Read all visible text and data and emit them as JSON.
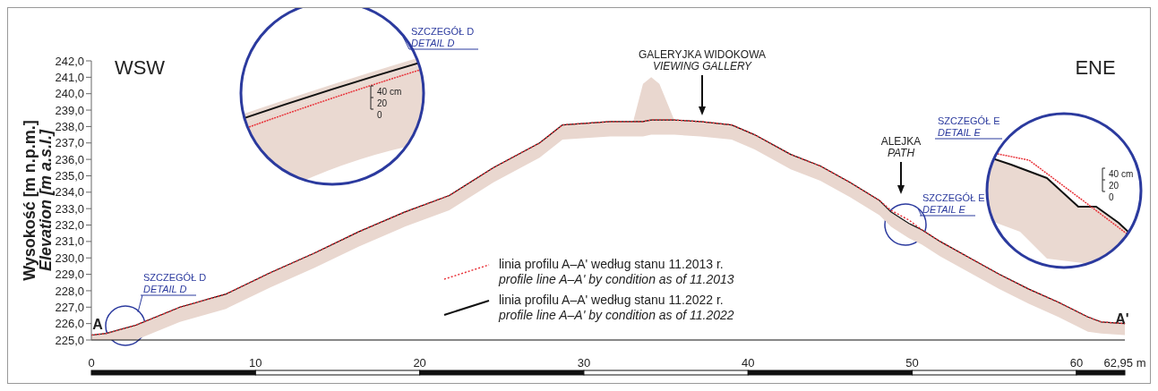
{
  "chart_data": {
    "type": "line",
    "ylabel": "Wysokość [m n.p.m.]\nElevation [m a.s.l.]",
    "x": [
      0,
      0.9,
      2.7,
      5.4,
      8.2,
      10.9,
      13.6,
      16.3,
      19.1,
      21.8,
      24.5,
      27.3,
      28.7,
      31.6,
      33.0,
      33.6,
      34.1,
      34.6,
      35.5,
      37.1,
      39.0,
      40.4,
      42.6,
      44.4,
      46.2,
      48.0,
      48.7,
      49.8,
      50.6,
      51.7,
      53.5,
      55.3,
      57.1,
      58.9,
      60.7,
      61.5,
      62.95
    ],
    "series": [
      {
        "name": "linia profilu A–A' według stanu 11.2013 r.\nprofile line A–A' by condition as of 11.2013",
        "color": "#e8333a",
        "line_style": "dotted",
        "values": [
          225.3,
          225.4,
          225.9,
          227.0,
          227.8,
          229.1,
          230.3,
          231.6,
          232.8,
          233.8,
          235.5,
          237.0,
          238.1,
          238.3,
          238.3,
          238.3,
          238.4,
          238.4,
          238.4,
          238.3,
          238.1,
          237.5,
          236.3,
          235.6,
          234.6,
          233.5,
          232.9,
          232.3,
          231.7,
          231.0,
          230.0,
          229.0,
          228.1,
          227.3,
          226.4,
          226.1,
          226.0
        ]
      },
      {
        "name": "linia profilu A–A' według stanu 11.2022 r.\nprofile line A–A' by condition as of 11.2022",
        "color": "#111111",
        "line_style": "solid",
        "values": [
          225.3,
          225.4,
          225.9,
          227.0,
          227.8,
          229.1,
          230.3,
          231.6,
          232.8,
          233.8,
          235.5,
          237.0,
          238.1,
          238.3,
          238.3,
          238.3,
          238.4,
          238.4,
          238.4,
          238.3,
          238.1,
          237.5,
          236.3,
          235.6,
          234.6,
          233.5,
          232.8,
          232.1,
          231.7,
          231.0,
          230.0,
          229.0,
          228.1,
          227.3,
          226.4,
          226.1,
          226.0
        ],
        "lower": [
          225.0,
          225.0,
          225.0,
          226.1,
          226.9,
          228.2,
          229.4,
          230.7,
          231.9,
          232.9,
          234.6,
          236.1,
          237.2,
          237.4,
          237.4,
          237.4,
          237.5,
          237.5,
          237.5,
          237.4,
          237.2,
          236.6,
          235.4,
          234.7,
          233.7,
          232.6,
          231.9,
          231.2,
          230.8,
          230.1,
          229.1,
          228.1,
          227.2,
          226.4,
          225.5,
          225.4,
          225.3
        ],
        "upper": [
          225.3,
          225.4,
          225.9,
          227.0,
          227.8,
          229.1,
          230.3,
          231.6,
          232.8,
          233.8,
          235.5,
          237.0,
          238.1,
          238.3,
          238.3,
          240.6,
          241.0,
          240.6,
          238.4,
          238.3,
          238.1,
          237.5,
          236.3,
          235.6,
          234.6,
          233.5,
          232.8,
          232.1,
          231.7,
          231.0,
          230.0,
          229.0,
          228.1,
          227.3,
          226.4,
          226.1,
          226.0
        ]
      }
    ],
    "xlim": [
      0,
      62.95
    ],
    "xticks": [
      0,
      10,
      20,
      30,
      40,
      50,
      60,
      {
        "value": 62.95,
        "label": "62,95 m"
      }
    ],
    "ylim": [
      225,
      242
    ],
    "yticks": [
      {
        "value": 225,
        "label": "225,0"
      },
      {
        "value": 226,
        "label": "226,0"
      },
      {
        "value": 227,
        "label": "227,0"
      },
      {
        "value": 228,
        "label": "228,0"
      },
      {
        "value": 229,
        "label": "229,0"
      },
      {
        "value": 230,
        "label": "230,0"
      },
      {
        "value": 231,
        "label": "231,0"
      },
      {
        "value": 232,
        "label": "232,0"
      },
      {
        "value": 233,
        "label": "233,0"
      },
      {
        "value": 234,
        "label": "234,0"
      },
      {
        "value": 235,
        "label": "235,0"
      },
      {
        "value": 236,
        "label": "236,0"
      },
      {
        "value": 237,
        "label": "237,0"
      },
      {
        "value": 238,
        "label": "238,0"
      },
      {
        "value": 239,
        "label": "239,0"
      },
      {
        "value": 240,
        "label": "240,0"
      },
      {
        "value": 241,
        "label": "241,0"
      },
      {
        "value": 242,
        "label": "242,0"
      }
    ],
    "grid": false,
    "legend": "bottom",
    "marker": "none",
    "annotations": [
      "WSW",
      "ENE",
      "GALERYJKA WIDOKOWA",
      "VIEWING GALLERY",
      "ALEJKA",
      "PATH",
      "SZCZEGÓŁ D",
      "DETAIL D",
      "SZCZEGÓŁ D",
      "DETAIL D",
      "SZCZEGÓŁ E",
      "DETAIL E",
      "SZCZEGÓŁ E",
      "DETAIL E",
      "A",
      "A'",
      "40 cm",
      "20",
      "0",
      "40 cm",
      "20",
      "0"
    ]
  }
}
